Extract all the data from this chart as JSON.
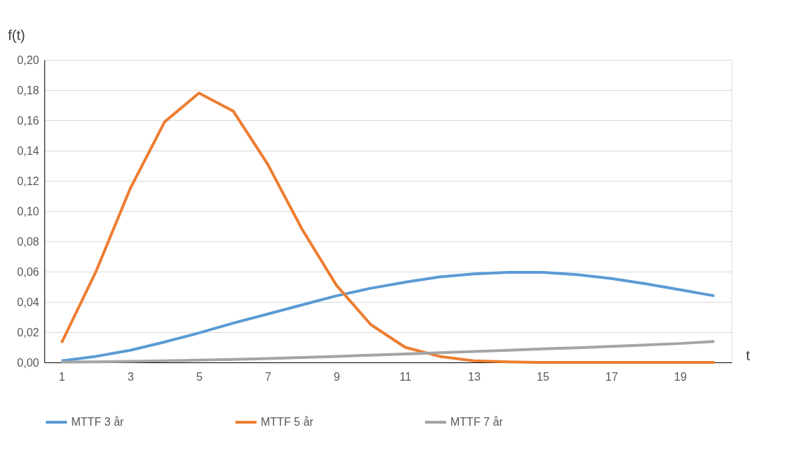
{
  "chart_data": {
    "type": "line",
    "xlabel": "t",
    "ylabel": "f(t)",
    "x": [
      1,
      2,
      3,
      4,
      5,
      6,
      7,
      8,
      9,
      10,
      11,
      12,
      13,
      14,
      15,
      16,
      17,
      18,
      19,
      20
    ],
    "xlim": [
      0.5,
      20.5
    ],
    "xticks": [
      1,
      3,
      5,
      7,
      9,
      11,
      13,
      15,
      17,
      19
    ],
    "ylim": [
      0,
      0.2
    ],
    "yticks": [
      {
        "value": 0,
        "label": "0,00"
      },
      {
        "value": 0.02,
        "label": "0,02"
      },
      {
        "value": 0.04,
        "label": "0,04"
      },
      {
        "value": 0.06,
        "label": "0,06"
      },
      {
        "value": 0.08,
        "label": "0,08"
      },
      {
        "value": 0.1,
        "label": "0,10"
      },
      {
        "value": 0.12,
        "label": "0,12"
      },
      {
        "value": 0.14,
        "label": "0,14"
      },
      {
        "value": 0.16,
        "label": "0,16"
      },
      {
        "value": 0.18,
        "label": "0,18"
      },
      {
        "value": 0.2,
        "label": "0,20"
      }
    ],
    "grid": "y",
    "legend": "bottom",
    "marker": "none",
    "line_style": "solid",
    "series": [
      {
        "name": "MTTF 3 år",
        "color": "#5b9bd5",
        "values": [
          0.001,
          0.004,
          0.008,
          0.0135,
          0.0195,
          0.026,
          0.032,
          0.038,
          0.044,
          0.049,
          0.053,
          0.0565,
          0.0585,
          0.0595,
          0.0595,
          0.058,
          0.0555,
          0.052,
          0.048,
          0.044
        ]
      },
      {
        "name": "MTTF 5 år",
        "color": "#ed7d31",
        "values": [
          0.013,
          0.06,
          0.115,
          0.159,
          0.178,
          0.166,
          0.131,
          0.088,
          0.051,
          0.025,
          0.01,
          0.004,
          0.001,
          0.0003,
          0,
          0,
          0,
          0,
          0,
          0
        ]
      },
      {
        "name": "MTTF 7 år",
        "color": "#a5a5a5",
        "values": [
          0.0002,
          0.0004,
          0.0007,
          0.001,
          0.0015,
          0.002,
          0.0026,
          0.0033,
          0.004,
          0.0048,
          0.0056,
          0.0064,
          0.0072,
          0.008,
          0.0089,
          0.0097,
          0.0106,
          0.0115,
          0.0125,
          0.0138
        ]
      }
    ]
  }
}
